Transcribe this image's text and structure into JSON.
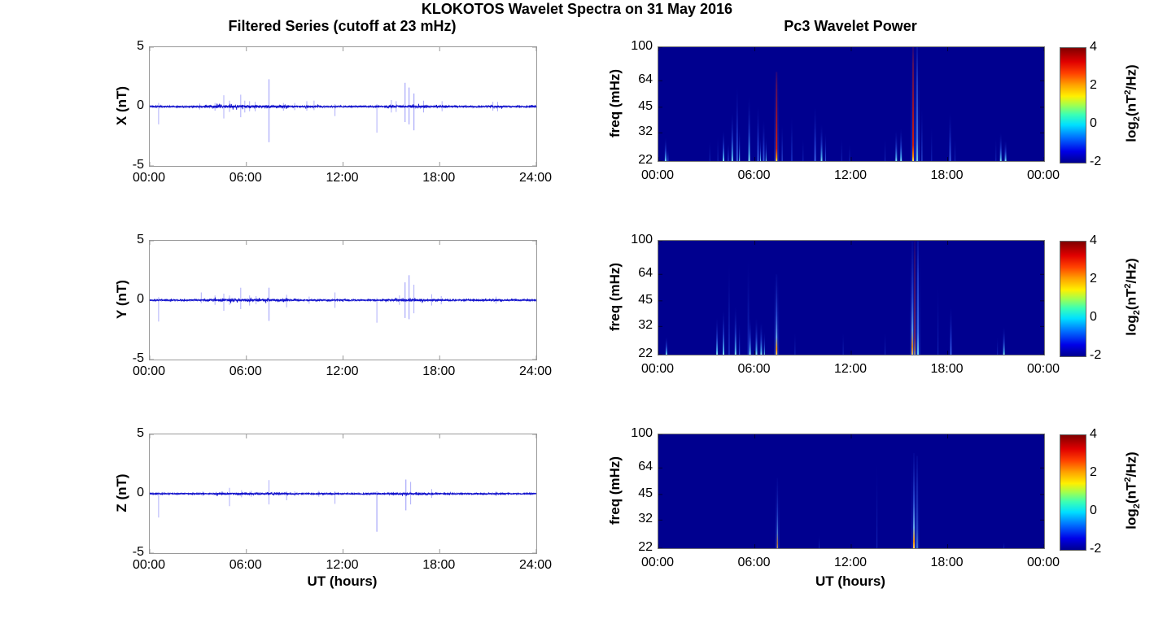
{
  "figure": {
    "title": "KLOKOTOS Wavelet Spectra on 31 May 2016",
    "background": "#ffffff"
  },
  "chart_data": {
    "left": {
      "type": "line",
      "title": "Filtered Series (cutoff at 23 mHz)",
      "xlabel": "UT (hours)",
      "x_hours_range": [
        0,
        24
      ],
      "xtick_labels": [
        "00:00",
        "06:00",
        "12:00",
        "18:00",
        "24:00"
      ],
      "ylim": [
        -5,
        5
      ],
      "ytick_values": [
        5,
        0,
        -5
      ],
      "ytick_labels": [
        "5",
        "0",
        "-5"
      ],
      "line_color": "#1111cc",
      "spike_color": "rgba(95,95,245,0.5)",
      "panels": [
        {
          "ylabel": "X (nT)",
          "seed": 11,
          "noise_base": 0.055,
          "noise_bursts": [
            [
              3.4,
              8.6,
              0.1
            ],
            [
              9.4,
              11.0,
              0.07
            ],
            [
              14.6,
              17.3,
              0.095
            ],
            [
              17.8,
              18.6,
              0.07
            ],
            [
              20.9,
              21.9,
              0.075
            ]
          ],
          "spikes": [
            [
              0.55,
              0.3,
              -1.5
            ],
            [
              3.1,
              0.25,
              -0.25
            ],
            [
              4.05,
              0.3,
              -0.35
            ],
            [
              4.6,
              0.95,
              -1.0
            ],
            [
              4.95,
              0.5,
              -0.45
            ],
            [
              5.65,
              1.0,
              -0.9
            ],
            [
              5.9,
              0.5,
              -0.5
            ],
            [
              6.2,
              0.45,
              -0.4
            ],
            [
              6.55,
              0.4,
              -0.4
            ],
            [
              7.4,
              2.3,
              -3.0
            ],
            [
              8.3,
              0.3,
              -0.35
            ],
            [
              9.0,
              0.3,
              -0.3
            ],
            [
              9.75,
              0.45,
              -0.35
            ],
            [
              10.2,
              0.5,
              -0.3
            ],
            [
              11.5,
              0.2,
              -0.8
            ],
            [
              14.1,
              0.2,
              -2.2
            ],
            [
              15.0,
              0.55,
              -0.5
            ],
            [
              15.3,
              0.45,
              -0.45
            ],
            [
              15.85,
              2.0,
              -1.3
            ],
            [
              16.1,
              1.6,
              -1.5
            ],
            [
              16.4,
              1.1,
              -2.0
            ],
            [
              17.0,
              0.5,
              -0.5
            ],
            [
              18.15,
              0.45,
              -0.4
            ],
            [
              21.3,
              0.4,
              -0.35
            ],
            [
              21.6,
              0.4,
              -0.4
            ]
          ]
        },
        {
          "ylabel": "Y (nT)",
          "seed": 22,
          "noise_base": 0.055,
          "noise_bursts": [
            [
              3.4,
              8.6,
              0.1
            ],
            [
              14.6,
              17.3,
              0.09
            ],
            [
              17.8,
              18.6,
              0.065
            ],
            [
              20.9,
              21.9,
              0.07
            ]
          ],
          "spikes": [
            [
              0.55,
              0.25,
              -1.8
            ],
            [
              3.2,
              0.65,
              -0.25
            ],
            [
              4.05,
              0.4,
              -0.4
            ],
            [
              4.6,
              0.55,
              -0.9
            ],
            [
              4.95,
              0.4,
              -0.4
            ],
            [
              5.65,
              1.05,
              -0.75
            ],
            [
              6.2,
              0.4,
              -0.45
            ],
            [
              6.6,
              0.35,
              -0.35
            ],
            [
              7.4,
              1.05,
              -1.75
            ],
            [
              8.5,
              0.45,
              -0.6
            ],
            [
              9.9,
              0.3,
              -0.3
            ],
            [
              11.5,
              0.65,
              -0.65
            ],
            [
              14.1,
              0.2,
              -1.9
            ],
            [
              15.5,
              0.4,
              -0.4
            ],
            [
              15.85,
              1.5,
              -1.5
            ],
            [
              16.1,
              2.1,
              -1.6
            ],
            [
              16.4,
              1.3,
              -1.1
            ],
            [
              17.5,
              0.5,
              -0.45
            ],
            [
              18.1,
              0.35,
              -0.35
            ],
            [
              21.5,
              0.3,
              -0.3
            ]
          ]
        },
        {
          "ylabel": "Z (nT)",
          "seed": 33,
          "noise_base": 0.045,
          "noise_bursts": [
            [
              4.0,
              8.6,
              0.08
            ],
            [
              14.8,
              17.3,
              0.075
            ],
            [
              20.9,
              21.9,
              0.055
            ]
          ],
          "spikes": [
            [
              0.55,
              0.15,
              -2.0
            ],
            [
              3.3,
              0.2,
              -0.2
            ],
            [
              4.95,
              0.5,
              -1.05
            ],
            [
              5.7,
              0.3,
              -0.3
            ],
            [
              6.3,
              0.25,
              -0.25
            ],
            [
              7.4,
              1.15,
              -0.9
            ],
            [
              8.5,
              0.2,
              -0.55
            ],
            [
              9.0,
              0.2,
              -0.2
            ],
            [
              10.5,
              0.25,
              -0.25
            ],
            [
              11.5,
              0.2,
              -0.85
            ],
            [
              14.1,
              0.2,
              -3.2
            ],
            [
              15.9,
              1.2,
              -1.4
            ],
            [
              16.2,
              1.0,
              -0.9
            ],
            [
              17.5,
              0.4,
              -0.35
            ],
            [
              21.5,
              0.2,
              -0.2
            ]
          ]
        }
      ]
    },
    "right": {
      "type": "heatmap",
      "title": "Pc3 Wavelet Power",
      "xlabel": "UT (hours)",
      "x_hours_range": [
        0,
        24
      ],
      "xtick_labels": [
        "00:00",
        "06:00",
        "12:00",
        "18:00",
        "00:00"
      ],
      "ylabel": "freq (mHz)",
      "freq_scale": "log",
      "freq_range_mhz": [
        22,
        100
      ],
      "freq_tick_labels": [
        "100",
        "64",
        "45",
        "32",
        "22"
      ],
      "freq_tick_values": [
        100,
        64,
        45,
        32,
        22
      ],
      "background": "#00008F",
      "colorbar": {
        "tick_labels": [
          "4",
          "2",
          "0",
          "-2"
        ],
        "tick_values": [
          4,
          2,
          0,
          -2
        ],
        "range": [
          -2,
          4
        ],
        "label_parts": {
          "prefix": "log",
          "sub": "2",
          "mid": "(nT",
          "sup": "2",
          "suffix": "/Hz)"
        },
        "gradient_stops": [
          [
            0,
            "#00008F"
          ],
          [
            0.1,
            "#0000E8"
          ],
          [
            0.22,
            "#0070FF"
          ],
          [
            0.33,
            "#00E0FF"
          ],
          [
            0.42,
            "#3CFFB4"
          ],
          [
            0.5,
            "#A0FF50"
          ],
          [
            0.58,
            "#FFF000"
          ],
          [
            0.68,
            "#FFA000"
          ],
          [
            0.78,
            "#FF4000"
          ],
          [
            0.88,
            "#E00000"
          ],
          [
            1,
            "#800000"
          ]
        ]
      },
      "streak_classes": {
        "faint": [
          [
            0,
            "rgba(40,80,230,0.5)"
          ],
          [
            0.5,
            "rgba(25,55,200,0.28)"
          ],
          [
            1,
            "rgba(10,10,160,0)"
          ]
        ],
        "blue": [
          [
            0,
            "rgba(70,120,250,0.8)"
          ],
          [
            0.35,
            "rgba(45,85,235,0.55)"
          ],
          [
            1,
            "rgba(10,20,170,0)"
          ]
        ],
        "cyan": [
          [
            0,
            "rgba(140,240,250,0.95)"
          ],
          [
            0.12,
            "rgba(80,190,250,0.85)"
          ],
          [
            0.45,
            "rgba(50,100,240,0.5)"
          ],
          [
            1,
            "rgba(10,20,170,0)"
          ]
        ],
        "steel": [
          [
            0,
            "rgba(120,220,240,0.9)"
          ],
          [
            0.2,
            "rgba(70,130,240,0.8)"
          ],
          [
            0.7,
            "rgba(50,90,230,0.6)"
          ],
          [
            1,
            "rgba(30,60,210,0.25)"
          ]
        ],
        "red": [
          [
            0,
            "rgba(255,230,80,1)"
          ],
          [
            0.04,
            "rgba(255,140,0,1)"
          ],
          [
            0.14,
            "rgba(220,30,0,0.95)"
          ],
          [
            0.5,
            "rgba(175,20,30,0.85)"
          ],
          [
            0.85,
            "rgba(140,25,60,0.6)"
          ],
          [
            1,
            "rgba(110,20,90,0.3)"
          ]
        ],
        "orange": [
          [
            0,
            "rgba(255,210,90,1)"
          ],
          [
            0.07,
            "rgba(255,150,0,0.95)"
          ],
          [
            0.22,
            "rgba(120,200,245,0.8)"
          ],
          [
            0.5,
            "rgba(60,110,240,0.6)"
          ],
          [
            1,
            "rgba(20,40,190,0.15)"
          ]
        ],
        "halo": [
          [
            0,
            "rgba(40,80,220,0.4)"
          ],
          [
            1,
            "rgba(10,20,160,0)"
          ]
        ]
      },
      "panels": [
        {
          "component": "X",
          "streaks": [
            [
              0.45,
              30,
              "cyan",
              2
            ],
            [
              0.6,
              26,
              "blue",
              1
            ],
            [
              3.2,
              29,
              "faint",
              1
            ],
            [
              3.7,
              31,
              "faint",
              1
            ],
            [
              4.05,
              33,
              "cyan",
              2
            ],
            [
              4.35,
              28,
              "blue",
              1
            ],
            [
              4.6,
              42,
              "cyan",
              2
            ],
            [
              4.9,
              60,
              "blue",
              2
            ],
            [
              5.05,
              34,
              "cyan",
              1
            ],
            [
              5.65,
              52,
              "cyan",
              2
            ],
            [
              6.2,
              46,
              "blue",
              2
            ],
            [
              6.35,
              30,
              "cyan",
              1
            ],
            [
              6.55,
              38,
              "blue",
              2
            ],
            [
              6.7,
              30,
              "cyan",
              1
            ],
            [
              7.35,
              72,
              "red",
              2
            ],
            [
              7.7,
              36,
              "blue",
              1
            ],
            [
              8.3,
              40,
              "faint",
              2
            ],
            [
              9.0,
              30,
              "faint",
              1
            ],
            [
              9.75,
              46,
              "blue",
              2
            ],
            [
              10.15,
              36,
              "cyan",
              2
            ],
            [
              10.4,
              32,
              "blue",
              1
            ],
            [
              11.4,
              30,
              "faint",
              1
            ],
            [
              11.9,
              28,
              "faint",
              1
            ],
            [
              14.1,
              30,
              "faint",
              1
            ],
            [
              14.8,
              33,
              "cyan",
              2
            ],
            [
              15.1,
              34,
              "cyan",
              2
            ],
            [
              15.85,
              100,
              "red",
              2
            ],
            [
              16.1,
              100,
              "steel",
              2
            ],
            [
              16.4,
              45,
              "blue",
              1
            ],
            [
              17.0,
              35,
              "faint",
              1
            ],
            [
              18.15,
              42,
              "blue",
              2
            ],
            [
              18.45,
              30,
              "faint",
              1
            ],
            [
              21.0,
              30,
              "faint",
              1
            ],
            [
              21.3,
              32,
              "cyan",
              2
            ],
            [
              21.6,
              29,
              "cyan",
              2
            ]
          ]
        },
        {
          "component": "Y",
          "streaks": [
            [
              0.5,
              28,
              "cyan",
              2
            ],
            [
              3.65,
              36,
              "cyan",
              2
            ],
            [
              4.05,
              40,
              "cyan",
              2
            ],
            [
              4.4,
              75,
              "faint",
              2
            ],
            [
              4.8,
              42,
              "cyan",
              2
            ],
            [
              5.05,
              33,
              "blue",
              1
            ],
            [
              5.6,
              80,
              "faint",
              2
            ],
            [
              5.7,
              36,
              "cyan",
              2
            ],
            [
              6.1,
              36,
              "cyan",
              2
            ],
            [
              6.4,
              34,
              "cyan",
              2
            ],
            [
              6.6,
              30,
              "cyan",
              1
            ],
            [
              7.35,
              64,
              "orange",
              2
            ],
            [
              8.5,
              30,
              "faint",
              1
            ],
            [
              11.5,
              30,
              "faint",
              1
            ],
            [
              14.1,
              30,
              "faint",
              1
            ],
            [
              15.8,
              100,
              "orange",
              2
            ],
            [
              15.95,
              100,
              "red",
              1
            ],
            [
              16.15,
              100,
              "steel",
              2
            ],
            [
              17.4,
              56,
              "faint",
              1
            ],
            [
              18.2,
              42,
              "blue",
              2
            ],
            [
              21.1,
              28,
              "faint",
              1
            ],
            [
              21.5,
              32,
              "cyan",
              2
            ]
          ]
        },
        {
          "component": "Z",
          "streaks": [
            [
              7.4,
              56,
              "orange",
              1
            ],
            [
              10.0,
              26,
              "faint",
              1
            ],
            [
              13.6,
              70,
              "faint",
              1
            ],
            [
              15.9,
              78,
              "orange",
              2
            ],
            [
              16.1,
              75,
              "steel",
              1
            ],
            [
              21.5,
              24,
              "faint",
              1
            ]
          ]
        }
      ]
    }
  }
}
